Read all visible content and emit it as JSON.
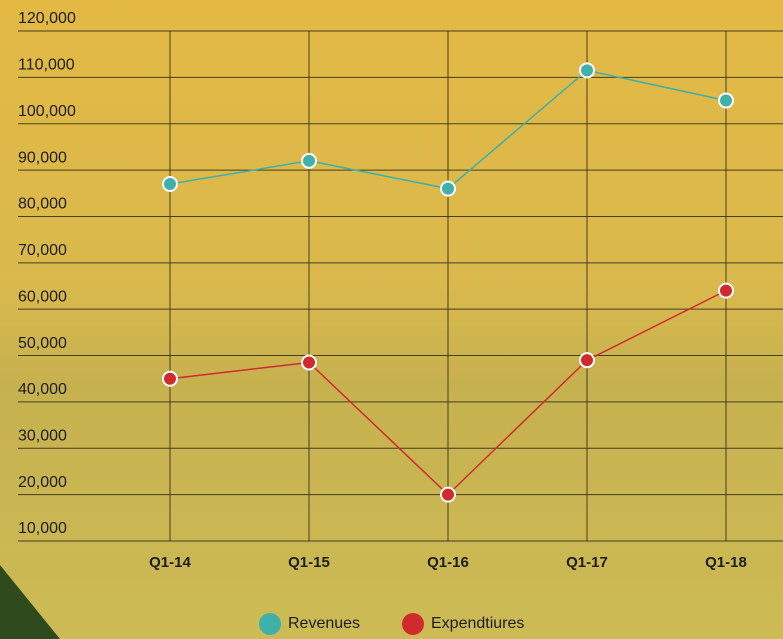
{
  "chart_data": {
    "type": "line",
    "categories": [
      "Q1-14",
      "Q1-15",
      "Q1-16",
      "Q1-17",
      "Q1-18"
    ],
    "series": [
      {
        "name": "Revenues",
        "color": "#3fb0aa",
        "values": [
          87000,
          92000,
          86000,
          111500,
          105000
        ]
      },
      {
        "name": "Expendtiures",
        "color": "#d12a2e",
        "values": [
          45000,
          48500,
          20000,
          49000,
          64000
        ]
      }
    ],
    "ylim": [
      10000,
      120000
    ],
    "yticks": [
      {
        "value": 10000,
        "label": "10,000"
      },
      {
        "value": 20000,
        "label": "20,000"
      },
      {
        "value": 30000,
        "label": "30,000"
      },
      {
        "value": 40000,
        "label": "40,000"
      },
      {
        "value": 50000,
        "label": "50,000"
      },
      {
        "value": 60000,
        "label": "60,000"
      },
      {
        "value": 70000,
        "label": "70,000"
      },
      {
        "value": 80000,
        "label": "80,000"
      },
      {
        "value": 90000,
        "label": "90,000"
      },
      {
        "value": 100000,
        "label": "100,000"
      },
      {
        "value": 110000,
        "label": "110,000"
      },
      {
        "value": 120000,
        "label": "120,000"
      }
    ],
    "grid": true,
    "legend": "bottom"
  }
}
